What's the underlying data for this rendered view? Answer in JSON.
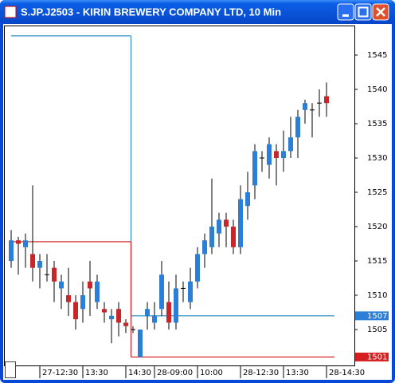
{
  "chart_data": {
    "type": "candlestick",
    "title": "S.JP.J2503 - KIRIN BREWERY COMPANY LTD, 10 Min",
    "categories": [
      null,
      null,
      "27-12:30",
      null,
      null,
      null,
      null,
      null,
      "13:30",
      null,
      null,
      null,
      null,
      null,
      "14:30",
      null,
      null,
      null,
      "28-09:00",
      null,
      null,
      null,
      null,
      null,
      "10:00",
      null,
      null,
      null,
      null,
      null,
      "28-12:30",
      null,
      null,
      null,
      null,
      null,
      "13:30",
      null,
      null,
      null,
      null,
      null,
      "28-14:30",
      null,
      null
    ],
    "open": [
      1515,
      1518,
      1517,
      1516,
      1514,
      1513,
      1514,
      1511,
      1510,
      1509,
      1508,
      1512,
      1509,
      1508,
      1506.5,
      1508,
      1506,
      1505,
      1501,
      1507,
      1506,
      1508,
      1509,
      1506,
      1511,
      1509,
      1512,
      1516,
      1517,
      1519,
      1521,
      1520,
      1517,
      1523,
      1526,
      1530,
      1529,
      1531,
      1530,
      1531,
      1533,
      1537,
      1537,
      1538,
      1539
    ],
    "high": [
      1519.5,
      1518.5,
      1519,
      1526,
      1516,
      1516,
      1515,
      1513,
      1514,
      1510,
      1512,
      1515,
      1513,
      1509,
      1508,
      1509,
      1506.5,
      1505.5,
      1505,
      1509,
      1509,
      1515,
      1512,
      1513,
      1512,
      1514,
      1517,
      1519,
      1527,
      1522,
      1522,
      1521,
      1526,
      1528,
      1532,
      1531,
      1533,
      1532,
      1534,
      1536,
      1537,
      1538.5,
      1538,
      1540,
      1541
    ],
    "low": [
      1514,
      1513,
      1514,
      1512,
      1511,
      1512,
      1509,
      1508,
      1507,
      1505,
      1506,
      1507,
      1508,
      1506,
      1503,
      1504,
      1504.5,
      1504.5,
      1501,
      1505,
      1505,
      1507,
      1505,
      1505,
      1509,
      1508,
      1511,
      1514,
      1516,
      1517,
      1517,
      1516,
      1516,
      1521,
      1524,
      1528,
      1527,
      1526,
      1528,
      1530,
      1530,
      1535,
      1533,
      1536,
      1536
    ],
    "close": [
      1518,
      1517.5,
      1518,
      1514,
      1515,
      1513,
      1512,
      1512,
      1509,
      1506.5,
      1510,
      1511,
      1512,
      1507.5,
      1507,
      1506,
      1505.5,
      1505,
      1505,
      1508,
      1507,
      1513,
      1506,
      1511,
      1511,
      1512,
      1516,
      1518,
      1520,
      1521,
      1520,
      1517,
      1524,
      1525,
      1531,
      1530,
      1532,
      1530,
      1531,
      1533,
      1536,
      1538,
      1537,
      1538,
      1538
    ],
    "up_color": "#2b7fd6",
    "down_color": "#c8262b",
    "lines": [
      {
        "color": "#2b8fc4",
        "values": [
          1547.8,
          1547.8,
          1547.8,
          1547.8,
          1547.8,
          1547.8,
          1547.8,
          1547.8,
          1547.8,
          1547.8,
          1547.8,
          1547.8,
          1547.8,
          1547.8,
          1547.8,
          1547.8,
          1547.8,
          1507,
          1507,
          1507,
          1507,
          1507,
          1507,
          1507,
          1507,
          1507,
          1507,
          1507,
          1507,
          1507,
          1507,
          1507,
          1507,
          1507,
          1507,
          1507,
          1507,
          1507,
          1507,
          1507,
          1507,
          1507,
          1507,
          1507,
          1507
        ]
      },
      {
        "color": "#d42020",
        "values": [
          1517.8,
          1517.8,
          1517.8,
          1517.8,
          1517.8,
          1517.8,
          1517.8,
          1517.8,
          1517.8,
          1517.8,
          1517.8,
          1517.8,
          1517.8,
          1517.8,
          1517.8,
          1517.8,
          1517.8,
          1501,
          1501,
          1501,
          1501,
          1501,
          1501,
          1501,
          1501,
          1501,
          1501,
          1501,
          1501,
          1501,
          1501,
          1501,
          1501,
          1501,
          1501,
          1501,
          1501,
          1501,
          1501,
          1501,
          1501,
          1501,
          1501,
          1501,
          1501
        ]
      }
    ],
    "price_tags": [
      {
        "value": 1507,
        "color": "#2b7fd6"
      },
      {
        "value": 1501,
        "color": "#d42020"
      }
    ],
    "ylim": [
      1499.77,
      1549.3
    ],
    "yticks": [
      1505,
      1510,
      1515,
      1520,
      1525,
      1530,
      1535,
      1540,
      1545
    ]
  }
}
